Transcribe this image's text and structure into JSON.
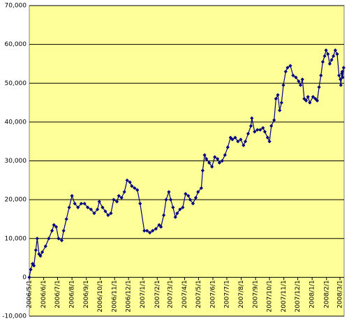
{
  "chart_data": {
    "type": "line",
    "x": [
      "2006/5/1",
      "2006/5/4",
      "2006/5/8",
      "2006/5/11",
      "2006/5/15",
      "2006/5/18",
      "2006/5/22",
      "2006/5/25",
      "2006/5/29",
      "2006/6/5",
      "2006/6/12",
      "2006/6/19",
      "2006/6/23",
      "2006/6/28",
      "2006/7/3",
      "2006/7/10",
      "2006/7/14",
      "2006/7/20",
      "2006/7/26",
      "2006/8/1",
      "2006/8/7",
      "2006/8/14",
      "2006/8/21",
      "2006/8/28",
      "2006/9/4",
      "2006/9/11",
      "2006/9/18",
      "2006/9/25",
      "2006/9/29",
      "2006/10/6",
      "2006/10/12",
      "2006/10/18",
      "2006/10/24",
      "2006/10/30",
      "2006/11/6",
      "2006/11/10",
      "2006/11/16",
      "2006/11/22",
      "2006/11/28",
      "2006/12/4",
      "2006/12/8",
      "2006/12/14",
      "2006/12/20",
      "2006/12/26",
      "2007/1/4",
      "2007/1/10",
      "2007/1/16",
      "2007/1/22",
      "2007/1/29",
      "2007/2/5",
      "2007/2/9",
      "2007/2/15",
      "2007/2/20",
      "2007/2/26",
      "2007/3/2",
      "2007/3/7",
      "2007/3/12",
      "2007/3/16",
      "2007/3/22",
      "2007/3/28",
      "2007/4/3",
      "2007/4/9",
      "2007/4/13",
      "2007/4/19",
      "2007/4/25",
      "2007/4/30",
      "2007/5/7",
      "2007/5/10",
      "2007/5/14",
      "2007/5/18",
      "2007/5/24",
      "2007/5/30",
      "2007/6/5",
      "2007/6/11",
      "2007/6/15",
      "2007/6/21",
      "2007/6/27",
      "2007/7/3",
      "2007/7/9",
      "2007/7/13",
      "2007/7/19",
      "2007/7/25",
      "2007/7/31",
      "2007/8/6",
      "2007/8/10",
      "2007/8/16",
      "2007/8/22",
      "2007/8/24",
      "2007/8/30",
      "2007/9/5",
      "2007/9/11",
      "2007/9/17",
      "2007/9/21",
      "2007/9/27",
      "2007/10/1",
      "2007/10/5",
      "2007/10/11",
      "2007/10/15",
      "2007/10/19",
      "2007/10/23",
      "2007/10/27",
      "2007/10/31",
      "2007/11/5",
      "2007/11/9",
      "2007/11/15",
      "2007/11/21",
      "2007/11/27",
      "2007/12/3",
      "2007/12/7",
      "2007/12/11",
      "2007/12/15",
      "2007/12/19",
      "2007/12/23",
      "2007/12/27",
      "2008/1/3",
      "2008/1/8",
      "2008/1/12",
      "2008/1/16",
      "2008/1/20",
      "2008/1/24",
      "2008/1/28",
      "2008/1/31",
      "2008/2/4",
      "2008/2/8",
      "2008/2/12",
      "2008/2/16",
      "2008/2/20",
      "2008/2/24",
      "2008/2/28",
      "2008/3/2",
      "2008/3/3",
      "2008/3/5",
      "2008/3/6",
      "2008/3/7",
      "2008/3/9"
    ],
    "series": [
      {
        "color": "#000080",
        "values": [
          0,
          2000,
          3500,
          3000,
          7000,
          10000,
          6000,
          5500,
          6500,
          8000,
          10000,
          12000,
          13500,
          13000,
          10000,
          9500,
          12000,
          15000,
          18000,
          21000,
          19000,
          18000,
          19000,
          19000,
          18000,
          17500,
          16500,
          17500,
          19500,
          18000,
          17000,
          16000,
          16500,
          20000,
          19500,
          21000,
          20500,
          22000,
          25000,
          24500,
          23500,
          23000,
          22500,
          19000,
          12000,
          12000,
          11500,
          12000,
          12500,
          13500,
          13000,
          16000,
          20000,
          22000,
          20000,
          18000,
          15500,
          16500,
          17500,
          18000,
          21500,
          21000,
          20000,
          19000,
          20500,
          22000,
          23000,
          27500,
          31500,
          30500,
          29500,
          28500,
          31000,
          30500,
          29500,
          30000,
          31500,
          33500,
          36000,
          35500,
          36000,
          35000,
          35500,
          34000,
          35000,
          37000,
          39000,
          41000,
          37500,
          38000,
          38000,
          38500,
          37500,
          36000,
          35000,
          39000,
          40500,
          46000,
          47000,
          43000,
          45000,
          49500,
          53000,
          54000,
          54500,
          52000,
          51500,
          50500,
          49500,
          51000,
          46000,
          45500,
          46500,
          45000,
          46500,
          46000,
          45500,
          49000,
          52000,
          55500,
          57000,
          58500,
          57500,
          55000,
          56000,
          57000,
          58500,
          57500,
          52000,
          51000,
          49500,
          52500,
          53000,
          51500,
          54000
        ]
      }
    ],
    "xlim": [
      "2006/5/1",
      "2008/3/10"
    ],
    "xticks": [
      "2006/5/1",
      "2006/6/1",
      "2006/7/1",
      "2006/8/1",
      "2006/9/1",
      "2006/10/1",
      "2006/11/1",
      "2006/12/1",
      "2007/1/1",
      "2007/2/1",
      "2007/3/1",
      "2007/4/1",
      "2007/5/1",
      "2007/6/1",
      "2007/7/1",
      "2007/8/1",
      "2007/9/1",
      "2007/10/1",
      "2007/11/1",
      "2007/12/1",
      "2008/1/1",
      "2008/2/1",
      "2008/3/1"
    ],
    "ylim": [
      -10000,
      70000
    ],
    "yticks": [
      {
        "value": -10000,
        "label": "-10,000"
      },
      0,
      {
        "value": 10000,
        "label": "10,000"
      },
      {
        "value": 20000,
        "label": "20,000"
      },
      {
        "value": 30000,
        "label": "30,000"
      },
      {
        "value": 40000,
        "label": "40,000"
      },
      {
        "value": 50000,
        "label": "50,000"
      },
      {
        "value": 60000,
        "label": "60,000"
      },
      {
        "value": 70000,
        "label": "70,000"
      }
    ],
    "grid": true,
    "background": "#ffff99"
  }
}
